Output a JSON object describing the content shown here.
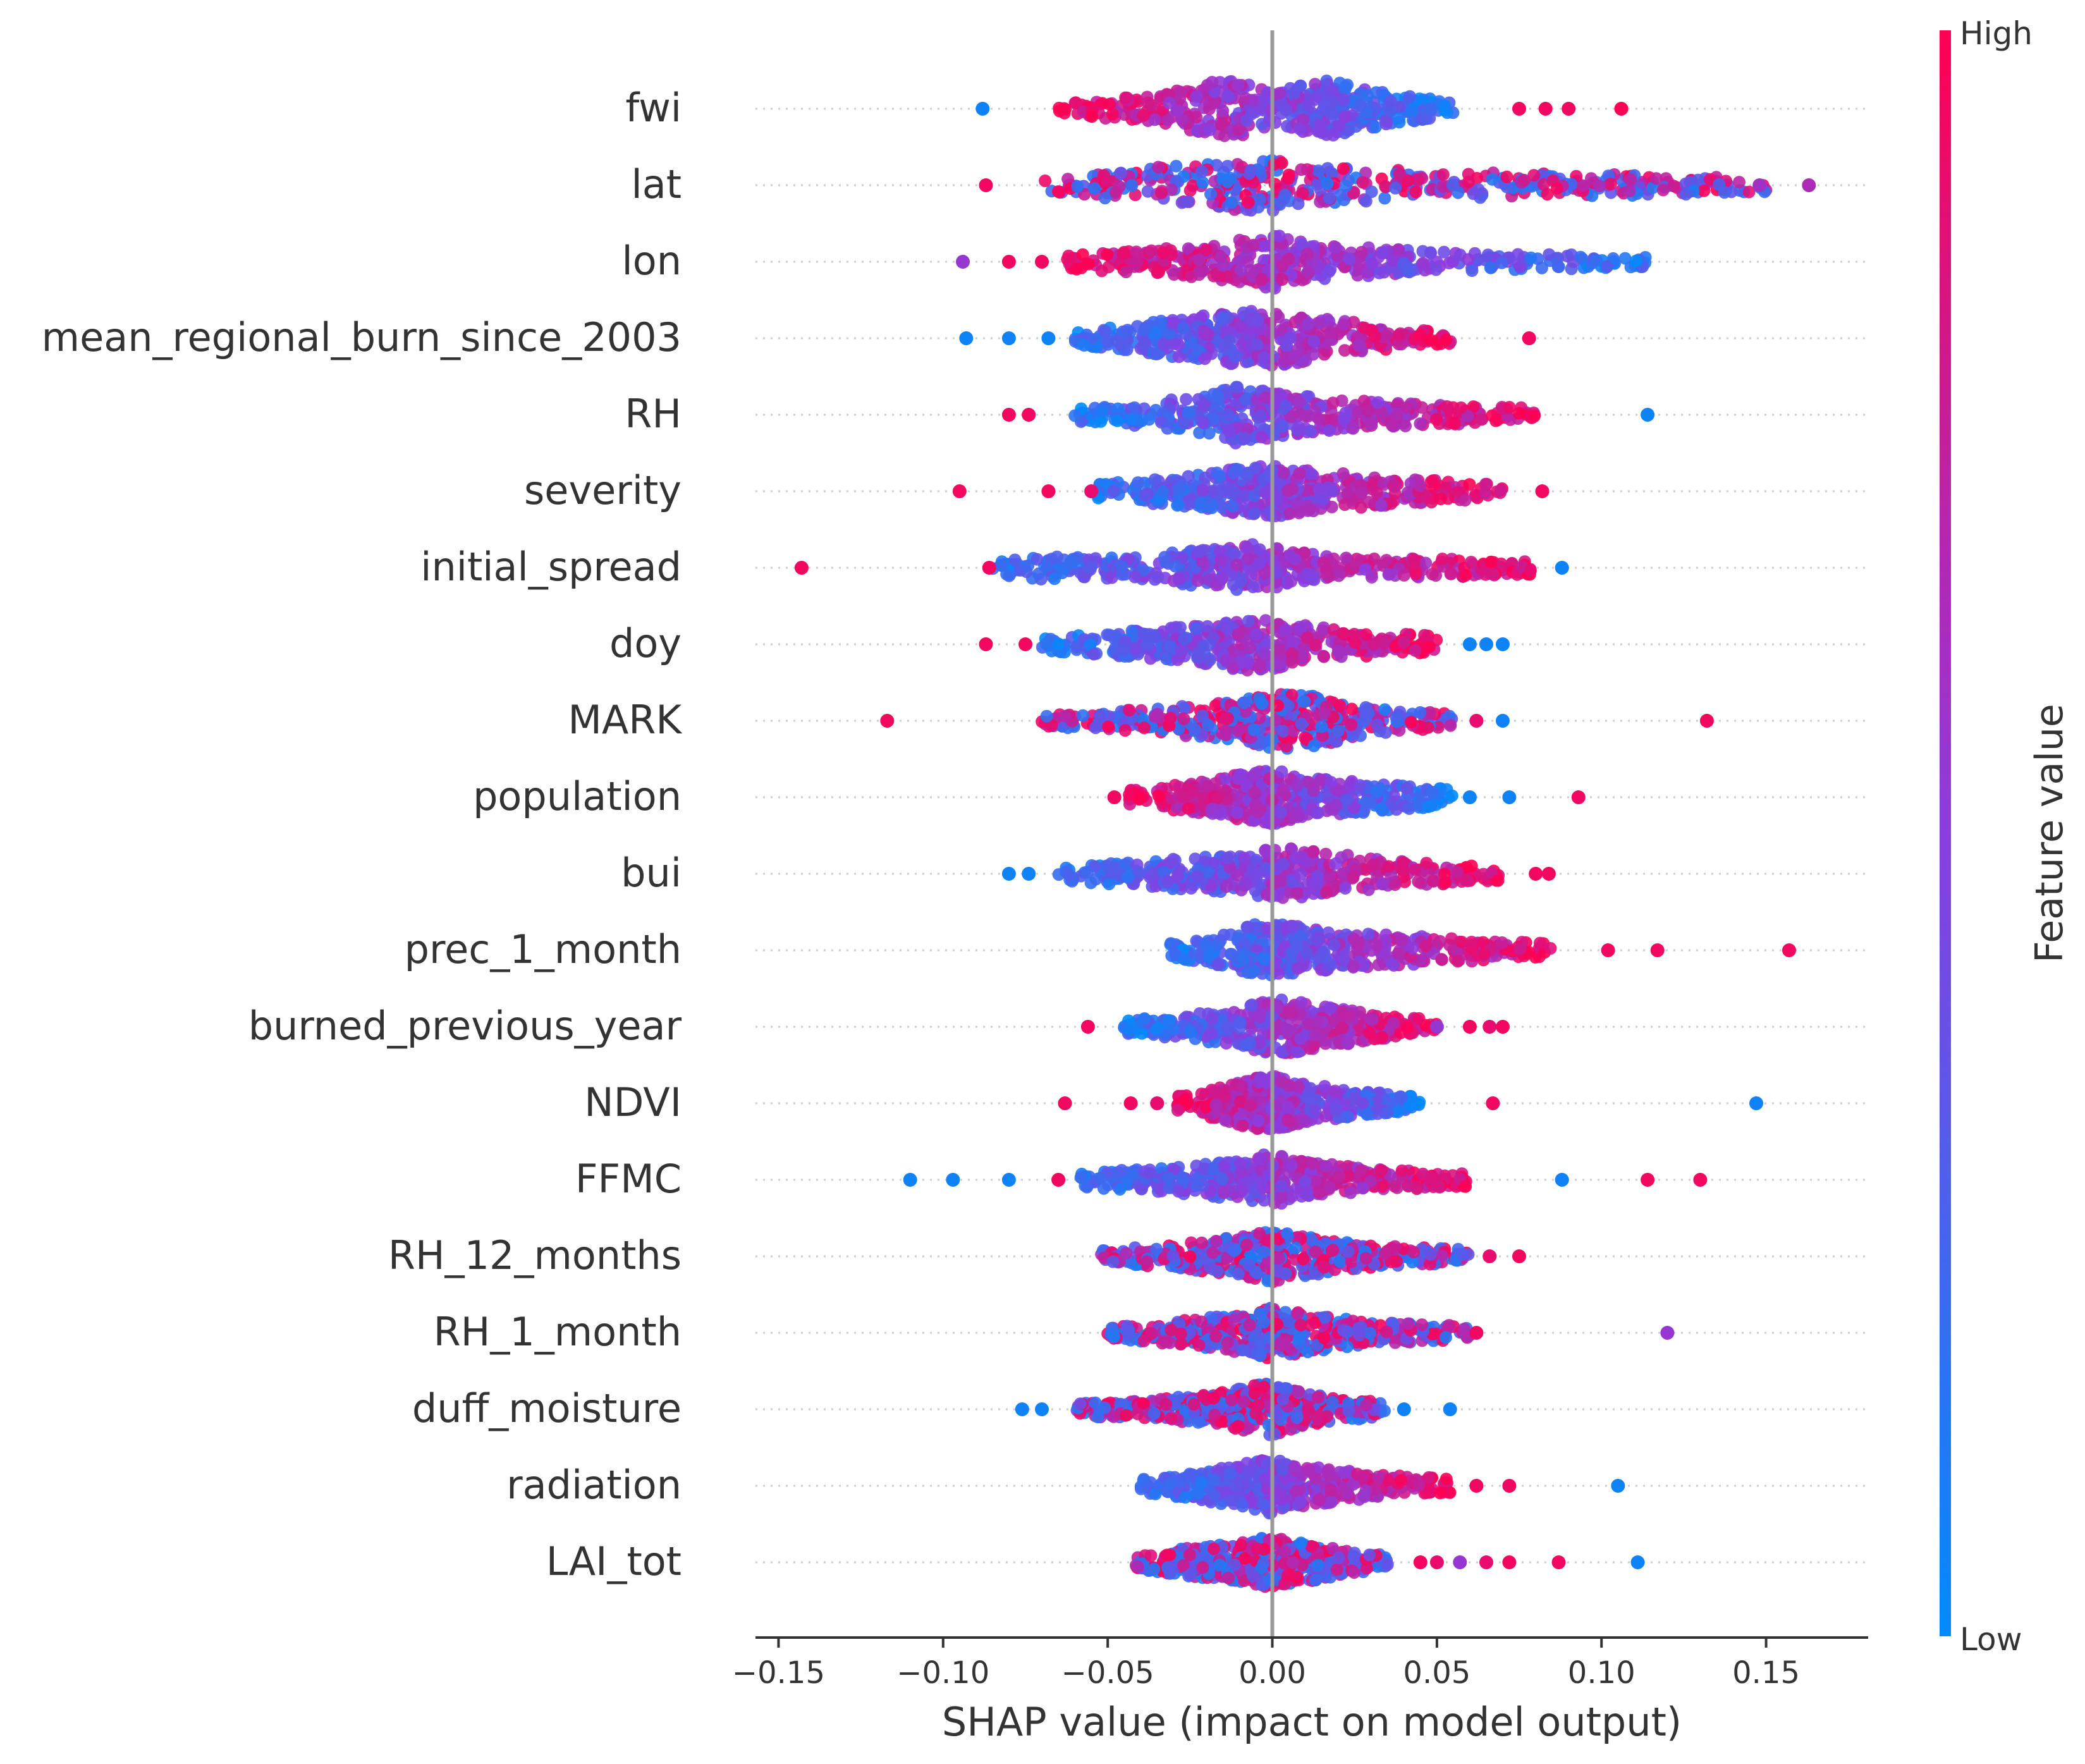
{
  "chart_data": {
    "type": "scatter",
    "title": "",
    "xlabel": "SHAP value (impact on model output)",
    "ylabel": "",
    "xlim": [
      -0.157,
      0.181
    ],
    "xticks": [
      -0.15,
      -0.1,
      -0.05,
      0.0,
      0.05,
      0.1,
      0.15
    ],
    "xtick_labels": [
      "−0.15",
      "−0.10",
      "−0.05",
      "0.00",
      "0.05",
      "0.10",
      "0.15"
    ],
    "zero_line": 0.0,
    "colorbar": {
      "title": "Feature value",
      "high_label": "High",
      "low_label": "Low",
      "high_color": "#ff0052",
      "mid_color": "#8a3de0",
      "low_color": "#008bfb"
    },
    "features": [
      {
        "name": "fwi",
        "body": [
          -0.065,
          -0.05,
          -0.035,
          -0.02,
          -0.01,
          0.0,
          0.015,
          0.035,
          0.055
        ],
        "width": [
          0.15,
          0.3,
          0.45,
          0.8,
          0.85,
          0.5,
          0.9,
          0.5,
          0.2
        ],
        "trend": -1,
        "outliers": [
          [
            -0.088,
            0.05
          ],
          [
            0.075,
            0.95
          ],
          [
            0.083,
            0.95
          ],
          [
            0.09,
            0.95
          ],
          [
            0.106,
            1.0
          ]
        ]
      },
      {
        "name": "lat",
        "body": [
          -0.07,
          -0.05,
          -0.03,
          -0.02,
          0.0,
          0.01,
          0.05,
          0.1,
          0.15
        ],
        "width": [
          0.15,
          0.4,
          0.6,
          0.7,
          0.8,
          0.6,
          0.4,
          0.35,
          0.2
        ],
        "trend": 0,
        "outliers": [
          [
            -0.087,
            0.95
          ],
          [
            0.148,
            0.6
          ],
          [
            0.163,
            0.65
          ]
        ]
      },
      {
        "name": "lon",
        "body": [
          -0.065,
          -0.04,
          -0.02,
          0.0,
          0.02,
          0.05,
          0.08,
          0.1,
          0.115
        ],
        "width": [
          0.2,
          0.35,
          0.5,
          0.85,
          0.5,
          0.3,
          0.25,
          0.2,
          0.15
        ],
        "trend": -1,
        "outliers": [
          [
            -0.094,
            0.55
          ],
          [
            -0.08,
            0.95
          ],
          [
            -0.07,
            0.95
          ]
        ]
      },
      {
        "name": "mean_regional_burn_since_2003",
        "body": [
          -0.06,
          -0.04,
          -0.02,
          -0.005,
          0.005,
          0.02,
          0.04,
          0.055
        ],
        "width": [
          0.2,
          0.45,
          0.7,
          0.85,
          0.8,
          0.55,
          0.3,
          0.15
        ],
        "trend": 1,
        "outliers": [
          [
            -0.093,
            0.05
          ],
          [
            -0.08,
            0.05
          ],
          [
            -0.068,
            0.05
          ],
          [
            0.078,
            0.95
          ]
        ]
      },
      {
        "name": "RH",
        "body": [
          -0.06,
          -0.04,
          -0.02,
          -0.01,
          0.0,
          0.015,
          0.04,
          0.08
        ],
        "width": [
          0.2,
          0.35,
          0.6,
          0.9,
          0.7,
          0.5,
          0.35,
          0.2
        ],
        "trend": 1,
        "outliers": [
          [
            -0.08,
            0.95
          ],
          [
            -0.074,
            0.95
          ],
          [
            0.114,
            0.05
          ]
        ]
      },
      {
        "name": "severity",
        "body": [
          -0.055,
          -0.035,
          -0.01,
          0.0,
          0.015,
          0.04,
          0.07
        ],
        "width": [
          0.2,
          0.4,
          0.7,
          0.8,
          0.6,
          0.4,
          0.2
        ],
        "trend": 1,
        "outliers": [
          [
            -0.095,
            0.95
          ],
          [
            -0.068,
            0.95
          ],
          [
            -0.055,
            0.9
          ],
          [
            0.082,
            0.95
          ]
        ]
      },
      {
        "name": "initial_spread",
        "body": [
          -0.085,
          -0.07,
          -0.04,
          -0.01,
          -0.005,
          0.02,
          0.05,
          0.08
        ],
        "width": [
          0.2,
          0.35,
          0.35,
          0.75,
          0.7,
          0.3,
          0.3,
          0.2
        ],
        "trend": 1,
        "outliers": [
          [
            -0.143,
            0.95
          ],
          [
            -0.086,
            0.95
          ],
          [
            0.088,
            0.05
          ]
        ]
      },
      {
        "name": "doy",
        "body": [
          -0.07,
          -0.05,
          -0.02,
          -0.01,
          0.0,
          0.02,
          0.05
        ],
        "width": [
          0.2,
          0.35,
          0.6,
          0.8,
          0.75,
          0.45,
          0.25
        ],
        "trend": 1,
        "outliers": [
          [
            -0.087,
            0.95
          ],
          [
            -0.075,
            0.95
          ],
          [
            0.06,
            0.05
          ],
          [
            0.065,
            0.05
          ],
          [
            0.07,
            0.05
          ]
        ]
      },
      {
        "name": "MARK",
        "body": [
          -0.07,
          -0.04,
          -0.01,
          0.0,
          0.01,
          0.03,
          0.055
        ],
        "width": [
          0.2,
          0.35,
          0.6,
          0.85,
          0.85,
          0.4,
          0.2
        ],
        "trend": 0,
        "outliers": [
          [
            -0.117,
            0.95
          ],
          [
            0.062,
            0.9
          ],
          [
            0.07,
            0.05
          ],
          [
            0.132,
            0.95
          ]
        ]
      },
      {
        "name": "population",
        "body": [
          -0.045,
          -0.03,
          -0.01,
          0.0,
          0.01,
          0.03,
          0.055
        ],
        "width": [
          0.2,
          0.4,
          0.7,
          0.85,
          0.6,
          0.45,
          0.25
        ],
        "trend": -1,
        "outliers": [
          [
            -0.048,
            0.95
          ],
          [
            0.06,
            0.05
          ],
          [
            0.072,
            0.05
          ],
          [
            0.093,
            0.95
          ]
        ]
      },
      {
        "name": "bui",
        "body": [
          -0.065,
          -0.04,
          -0.01,
          0.0,
          0.02,
          0.04,
          0.07
        ],
        "width": [
          0.2,
          0.4,
          0.6,
          0.85,
          0.6,
          0.4,
          0.2
        ],
        "trend": 1,
        "outliers": [
          [
            -0.08,
            0.05
          ],
          [
            -0.074,
            0.05
          ],
          [
            0.08,
            0.95
          ],
          [
            0.084,
            0.95
          ]
        ]
      },
      {
        "name": "prec_1_month",
        "body": [
          -0.032,
          -0.015,
          -0.005,
          0.0,
          0.02,
          0.05,
          0.085
        ],
        "width": [
          0.2,
          0.5,
          0.8,
          0.85,
          0.55,
          0.4,
          0.2
        ],
        "trend": 1,
        "outliers": [
          [
            0.102,
            0.95
          ],
          [
            0.117,
            0.95
          ],
          [
            0.157,
            0.95
          ]
        ]
      },
      {
        "name": "burned_previous_year",
        "body": [
          -0.045,
          -0.03,
          -0.01,
          0.0,
          0.01,
          0.03,
          0.05
        ],
        "width": [
          0.2,
          0.35,
          0.6,
          0.85,
          0.75,
          0.4,
          0.2
        ],
        "trend": 1,
        "outliers": [
          [
            -0.056,
            0.95
          ],
          [
            0.05,
            0.55
          ],
          [
            0.06,
            0.95
          ],
          [
            0.066,
            0.9
          ],
          [
            0.07,
            0.95
          ]
        ]
      },
      {
        "name": "NDVI",
        "body": [
          -0.03,
          -0.02,
          -0.01,
          0.0,
          0.01,
          0.03,
          0.045
        ],
        "width": [
          0.2,
          0.4,
          0.7,
          0.85,
          0.6,
          0.35,
          0.2
        ],
        "trend": -1,
        "outliers": [
          [
            -0.063,
            0.95
          ],
          [
            -0.043,
            0.95
          ],
          [
            -0.035,
            0.9
          ],
          [
            0.067,
            0.95
          ],
          [
            0.147,
            0.05
          ]
        ]
      },
      {
        "name": "FFMC",
        "body": [
          -0.06,
          -0.04,
          -0.02,
          0.0,
          0.01,
          0.03,
          0.06
        ],
        "width": [
          0.2,
          0.35,
          0.5,
          0.8,
          0.55,
          0.35,
          0.2
        ],
        "trend": 1,
        "outliers": [
          [
            -0.11,
            0.05
          ],
          [
            -0.097,
            0.05
          ],
          [
            -0.08,
            0.05
          ],
          [
            -0.065,
            0.95
          ],
          [
            0.088,
            0.05
          ],
          [
            0.114,
            0.95
          ],
          [
            0.13,
            0.95
          ]
        ]
      },
      {
        "name": "RH_12_months",
        "body": [
          -0.052,
          -0.03,
          -0.01,
          0.0,
          0.01,
          0.03,
          0.06
        ],
        "width": [
          0.2,
          0.35,
          0.6,
          0.8,
          0.6,
          0.35,
          0.2
        ],
        "trend": 0,
        "outliers": [
          [
            0.066,
            0.9
          ],
          [
            0.075,
            0.95
          ]
        ]
      },
      {
        "name": "RH_1_month",
        "body": [
          -0.05,
          -0.03,
          -0.01,
          0.0,
          0.01,
          0.03,
          0.06
        ],
        "width": [
          0.2,
          0.35,
          0.6,
          0.8,
          0.6,
          0.35,
          0.2
        ],
        "trend": 0,
        "outliers": [
          [
            0.062,
            0.95
          ],
          [
            0.12,
            0.55
          ]
        ]
      },
      {
        "name": "duff_moisture",
        "body": [
          -0.06,
          -0.04,
          -0.02,
          -0.005,
          0.0,
          0.01,
          0.035
        ],
        "width": [
          0.2,
          0.3,
          0.45,
          0.75,
          0.8,
          0.5,
          0.2
        ],
        "trend": 0,
        "outliers": [
          [
            -0.076,
            0.05
          ],
          [
            -0.07,
            0.05
          ],
          [
            0.04,
            0.05
          ],
          [
            0.054,
            0.05
          ]
        ]
      },
      {
        "name": "radiation",
        "body": [
          -0.04,
          -0.025,
          -0.01,
          0.0,
          0.01,
          0.03,
          0.055
        ],
        "width": [
          0.2,
          0.4,
          0.65,
          0.85,
          0.6,
          0.4,
          0.2
        ],
        "trend": 1,
        "outliers": [
          [
            0.062,
            0.95
          ],
          [
            0.072,
            0.95
          ],
          [
            0.105,
            0.05
          ]
        ]
      },
      {
        "name": "LAI_tot",
        "body": [
          -0.042,
          -0.025,
          -0.01,
          0.0,
          0.01,
          0.025,
          0.035
        ],
        "width": [
          0.2,
          0.45,
          0.6,
          0.8,
          0.6,
          0.35,
          0.2
        ],
        "trend": 0,
        "outliers": [
          [
            0.045,
            0.95
          ],
          [
            0.05,
            0.9
          ],
          [
            0.057,
            0.55
          ],
          [
            0.065,
            0.9
          ],
          [
            0.072,
            0.95
          ],
          [
            0.087,
            0.95
          ],
          [
            0.111,
            0.05
          ]
        ]
      }
    ]
  }
}
